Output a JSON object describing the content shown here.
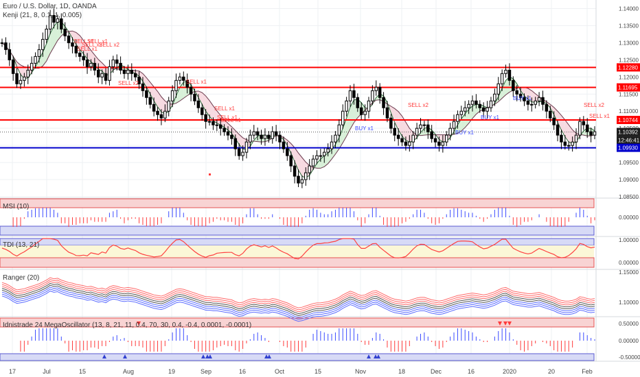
{
  "header": {
    "symbol_title": "Euro / U.S. Dollar, 1D, OANDA",
    "indicator_title": "Kenji (21, 8, 0.1, 1, 0.005)"
  },
  "colors": {
    "red_level": "#ff0000",
    "blue_level": "#0000cc",
    "bull": "#ffffff",
    "bear": "#000000",
    "sell_text": "#ff3b3b",
    "buy_text": "#3b4bff",
    "price_label_dark": "#1e1e1e",
    "grid": "#eef0f3"
  },
  "price_axis": {
    "ticks": [
      "1.14000",
      "1.13500",
      "1.13000",
      "1.12500",
      "1.12000",
      "1.11500",
      "1.11000",
      "1.10500",
      "1.10000",
      "1.09500",
      "1.09000",
      "1.08500"
    ],
    "levels": [
      {
        "label": "1.12280",
        "color": "#ff0000"
      },
      {
        "label": "1.11695",
        "color": "#ff0000"
      },
      {
        "label": "1.10744",
        "color": "#ff0000"
      },
      {
        "label": "1.10392",
        "color": "#1e1e1e"
      },
      {
        "label": "12:46:41",
        "color": "#1e1e1e"
      },
      {
        "label": "1.09930",
        "color": "#0000cc"
      }
    ]
  },
  "signals": [
    {
      "text": "SELL x1",
      "type": "sell"
    },
    {
      "text": "SELL x1",
      "type": "sell"
    },
    {
      "text": "SELL x2",
      "type": "sell"
    },
    {
      "text": "SELL x1",
      "type": "sell"
    },
    {
      "text": "SELL x2",
      "type": "sell"
    },
    {
      "text": "SELL x2",
      "type": "sell"
    },
    {
      "text": "SELL x1",
      "type": "sell"
    },
    {
      "text": "SELL x1",
      "type": "sell"
    },
    {
      "text": "SELL x1",
      "type": "sell"
    },
    {
      "text": "SELL x1",
      "type": "sell"
    },
    {
      "text": "SELL x2",
      "type": "sell"
    },
    {
      "text": "SELL x2",
      "type": "sell"
    },
    {
      "text": "SELL x1",
      "type": "sell"
    },
    {
      "text": "BUY x1",
      "type": "buy"
    },
    {
      "text": "BUY x1",
      "type": "buy"
    },
    {
      "text": "BUY x1",
      "type": "buy"
    },
    {
      "text": "BUY x1",
      "type": "buy"
    }
  ],
  "panes": {
    "msi": {
      "title": "MSI (10)",
      "ticks": [
        "0.00000"
      ]
    },
    "tdi": {
      "title": "TDI (13, 21)",
      "ticks": [
        "1.00000",
        "0.00000"
      ]
    },
    "ranger": {
      "title": "Ranger (20)",
      "ticks": [
        "1.15000",
        "1.10000"
      ]
    },
    "mega": {
      "title": "Idnistrade 24 MegaOscillator (13, 8, 21, 11, 0.4, 70, 30, 0.4, -0.4, 0.0001, -0.0001)",
      "ticks": [
        "0.50000",
        "0.00000",
        "-0.50000"
      ]
    }
  },
  "time_axis": [
    "17",
    "Jul",
    "15",
    "Aug",
    "19",
    "Sep",
    "16",
    "Oct",
    "15",
    "Nov",
    "18",
    "Dec",
    "16",
    "2020",
    "20",
    "Feb"
  ],
  "chart_data": {
    "type": "candlestick",
    "title": "Euro / U.S. Dollar, 1D, OANDA",
    "x_range": [
      "Jun 17",
      "Feb 4"
    ],
    "ylim": [
      1.085,
      1.1425
    ],
    "levels": [
      1.1228,
      1.11695,
      1.10744,
      1.0993
    ],
    "last_price": 1.10392,
    "close_path": [
      1.13,
      1.128,
      1.125,
      1.121,
      1.118,
      1.119,
      1.12,
      1.122,
      1.124,
      1.126,
      1.128,
      1.131,
      1.134,
      1.138,
      1.136,
      1.137,
      1.134,
      1.132,
      1.13,
      1.129,
      1.127,
      1.126,
      1.125,
      1.123,
      1.124,
      1.122,
      1.12,
      1.121,
      1.119,
      1.123,
      1.125,
      1.124,
      1.122,
      1.121,
      1.122,
      1.121,
      1.12,
      1.118,
      1.116,
      1.114,
      1.112,
      1.11,
      1.109,
      1.108,
      1.11,
      1.113,
      1.116,
      1.119,
      1.12,
      1.119,
      1.117,
      1.115,
      1.113,
      1.111,
      1.109,
      1.107,
      1.107,
      1.106,
      1.106,
      1.105,
      1.104,
      1.103,
      1.102,
      1.099,
      1.097,
      1.098,
      1.101,
      1.103,
      1.104,
      1.103,
      1.102,
      1.103,
      1.102,
      1.104,
      1.103,
      1.101,
      1.099,
      1.097,
      1.094,
      1.091,
      1.089,
      1.09,
      1.092,
      1.094,
      1.096,
      1.097,
      1.097,
      1.098,
      1.099,
      1.101,
      1.103,
      1.106,
      1.11,
      1.113,
      1.116,
      1.114,
      1.111,
      1.109,
      1.11,
      1.113,
      1.116,
      1.117,
      1.114,
      1.111,
      1.108,
      1.105,
      1.103,
      1.102,
      1.101,
      1.1,
      1.101,
      1.103,
      1.105,
      1.106,
      1.106,
      1.104,
      1.102,
      1.101,
      1.1,
      1.101,
      1.103,
      1.105,
      1.107,
      1.109,
      1.11,
      1.111,
      1.112,
      1.113,
      1.112,
      1.111,
      1.11,
      1.111,
      1.113,
      1.115,
      1.118,
      1.121,
      1.122,
      1.119,
      1.116,
      1.115,
      1.114,
      1.113,
      1.112,
      1.112,
      1.113,
      1.114,
      1.112,
      1.11,
      1.108,
      1.106,
      1.103,
      1.101,
      1.1,
      1.1,
      1.101,
      1.103,
      1.107,
      1.106,
      1.104,
      1.103,
      1.104
    ]
  }
}
